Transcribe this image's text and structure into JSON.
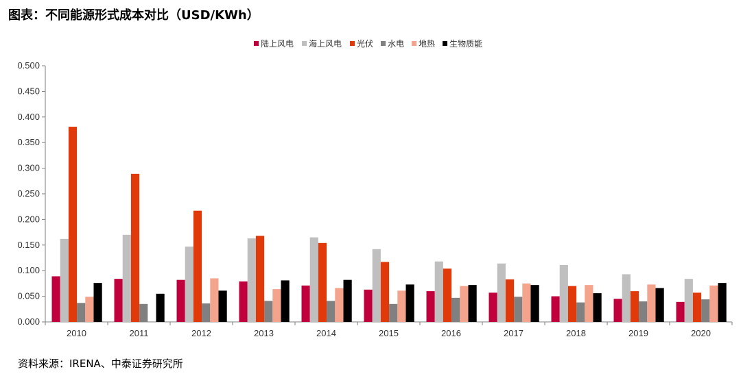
{
  "header": {
    "title": "图表：不同能源形式成本对比（USD/KWh）"
  },
  "footer": {
    "source": "资料来源：IRENA、中泰证券研究所"
  },
  "chart_data": {
    "type": "bar",
    "title": "",
    "xlabel": "",
    "ylabel": "",
    "ylim": [
      0,
      0.5
    ],
    "yticks": [
      "0.000",
      "0.050",
      "0.100",
      "0.150",
      "0.200",
      "0.250",
      "0.300",
      "0.350",
      "0.400",
      "0.450",
      "0.500"
    ],
    "grid": false,
    "legend_position": "top-center",
    "categories": [
      "2010",
      "2011",
      "2012",
      "2013",
      "2014",
      "2015",
      "2016",
      "2017",
      "2018",
      "2019",
      "2020"
    ],
    "series": [
      {
        "name": "陆上风电",
        "color": "#c0003c",
        "values": [
          0.089,
          0.084,
          0.082,
          0.079,
          0.071,
          0.063,
          0.06,
          0.057,
          0.05,
          0.045,
          0.039
        ]
      },
      {
        "name": "海上风电",
        "color": "#bfbfbf",
        "values": [
          0.162,
          0.17,
          0.147,
          0.163,
          0.165,
          0.142,
          0.118,
          0.114,
          0.111,
          0.093,
          0.084
        ]
      },
      {
        "name": "光伏",
        "color": "#e03a0a",
        "values": [
          0.381,
          0.289,
          0.217,
          0.168,
          0.154,
          0.117,
          0.104,
          0.083,
          0.07,
          0.06,
          0.057
        ]
      },
      {
        "name": "水电",
        "color": "#808080",
        "values": [
          0.037,
          0.035,
          0.036,
          0.041,
          0.041,
          0.035,
          0.047,
          0.049,
          0.038,
          0.04,
          0.044
        ]
      },
      {
        "name": "地热",
        "color": "#f4a48c",
        "values": [
          0.049,
          null,
          0.085,
          0.064,
          0.066,
          0.061,
          0.07,
          0.075,
          0.072,
          0.073,
          0.071
        ]
      },
      {
        "name": "生物质能",
        "color": "#000000",
        "values": [
          0.076,
          0.055,
          0.061,
          0.081,
          0.082,
          0.073,
          0.072,
          0.072,
          0.056,
          0.066,
          0.076
        ]
      }
    ]
  }
}
